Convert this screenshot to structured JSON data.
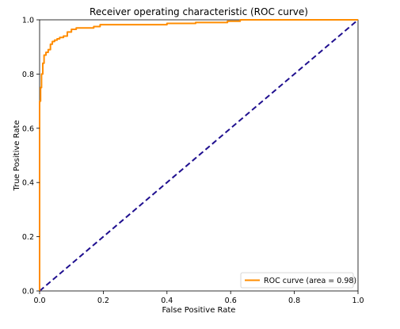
{
  "chart_data": {
    "type": "line",
    "title": "Receiver operating characteristic (ROC curve)",
    "xlabel": "False Positive Rate",
    "ylabel": "True Positive Rate",
    "xlim": [
      0.0,
      1.0
    ],
    "ylim": [
      0.0,
      1.0
    ],
    "x_ticks": [
      "0.0",
      "0.2",
      "0.4",
      "0.6",
      "0.8",
      "1.0"
    ],
    "y_ticks": [
      "0.0",
      "0.2",
      "0.4",
      "0.6",
      "0.8",
      "1.0"
    ],
    "grid": false,
    "legend_position": "bottom-right",
    "series": [
      {
        "name": "ROC curve (area = 0.98)",
        "color": "#ff8c00",
        "line_style": "solid",
        "x": [
          0.0,
          0.0,
          0.003,
          0.003,
          0.006,
          0.006,
          0.01,
          0.01,
          0.014,
          0.014,
          0.02,
          0.02,
          0.027,
          0.027,
          0.034,
          0.034,
          0.04,
          0.04,
          0.047,
          0.047,
          0.055,
          0.055,
          0.063,
          0.063,
          0.075,
          0.075,
          0.087,
          0.087,
          0.1,
          0.1,
          0.115,
          0.115,
          0.17,
          0.17,
          0.19,
          0.19,
          0.4,
          0.4,
          0.49,
          0.49,
          0.59,
          0.59,
          0.63,
          0.63,
          1.0
        ],
        "y": [
          0.0,
          0.7,
          0.7,
          0.75,
          0.75,
          0.8,
          0.8,
          0.84,
          0.84,
          0.87,
          0.87,
          0.88,
          0.88,
          0.89,
          0.89,
          0.91,
          0.91,
          0.92,
          0.92,
          0.925,
          0.925,
          0.93,
          0.93,
          0.935,
          0.935,
          0.94,
          0.94,
          0.955,
          0.955,
          0.965,
          0.965,
          0.97,
          0.97,
          0.975,
          0.975,
          0.982,
          0.982,
          0.987,
          0.987,
          0.99,
          0.99,
          0.995,
          0.995,
          1.0,
          1.0
        ]
      },
      {
        "color": "#1f0f8f",
        "line_style": "dashed",
        "x": [
          0.0,
          1.0
        ],
        "y": [
          0.0,
          1.0
        ]
      }
    ]
  }
}
